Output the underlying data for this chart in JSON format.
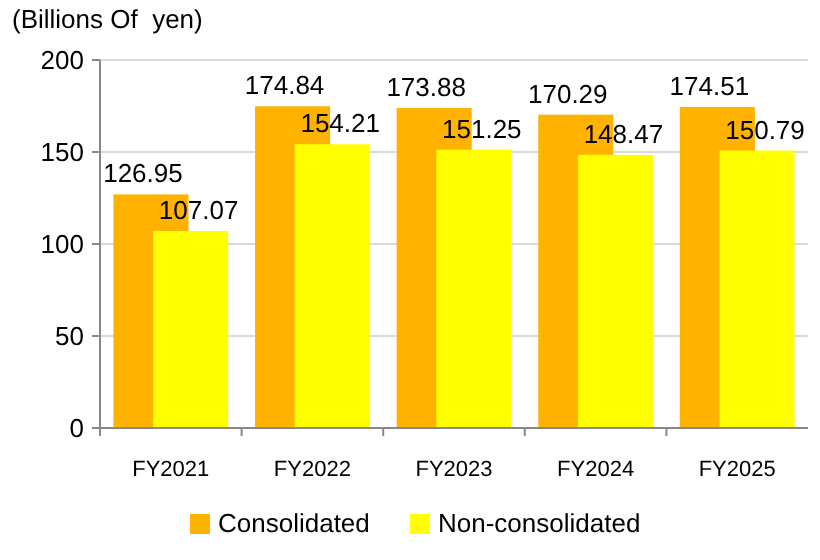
{
  "chart_data": {
    "type": "bar",
    "ylabel": "(Billions Of  yen)",
    "categories": [
      "FY2021",
      "FY2022",
      "FY2023",
      "FY2024",
      "FY2025"
    ],
    "series": [
      {
        "name": "Consolidated",
        "color": "#ffb300",
        "values": [
          126.95,
          174.84,
          173.88,
          170.29,
          174.51
        ]
      },
      {
        "name": "Non-consolidated",
        "color": "#ffff00",
        "values": [
          107.07,
          154.21,
          151.25,
          148.47,
          150.79
        ]
      }
    ],
    "ylim": [
      0,
      200
    ],
    "yticks": [
      0,
      50,
      100,
      150,
      200
    ],
    "grid": "y",
    "legend": "bottom",
    "data_labels": true
  }
}
